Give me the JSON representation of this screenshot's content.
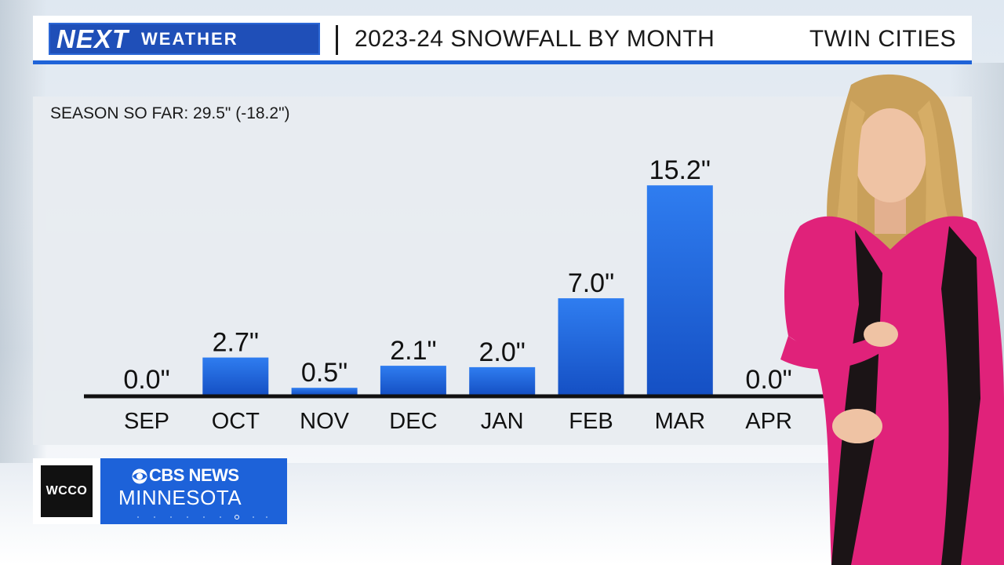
{
  "header": {
    "brand_next": "NEXT",
    "brand_weather": "WEATHER",
    "title": "2023-24 SNOWFALL BY MONTH",
    "location": "TWIN CITIES"
  },
  "season_note": "SEASON SO FAR: 29.5\" (-18.2\")",
  "logo": {
    "station": "WCCO",
    "network": "CBS NEWS",
    "region": "MINNESOTA"
  },
  "colors": {
    "accent_blue": "#1f63d8",
    "bar_top": "#2f7df0",
    "bar_bottom": "#1550c4",
    "presenter_dress": "#e0227a"
  },
  "chart_data": {
    "type": "bar",
    "title": "2023-24 SNOWFALL BY MONTH",
    "categories": [
      "SEP",
      "OCT",
      "NOV",
      "DEC",
      "JAN",
      "FEB",
      "MAR",
      "APR"
    ],
    "values": [
      0.0,
      2.7,
      0.5,
      2.1,
      2.0,
      7.0,
      15.2,
      0.0
    ],
    "value_labels": [
      "0.0\"",
      "2.7\"",
      "0.5\"",
      "2.1\"",
      "2.0\"",
      "7.0\"",
      "15.2\"",
      "0.0\""
    ],
    "unit": "inches",
    "xlabel": "",
    "ylabel": "",
    "ylim": [
      0,
      16
    ],
    "grid": false,
    "legend": "none"
  }
}
